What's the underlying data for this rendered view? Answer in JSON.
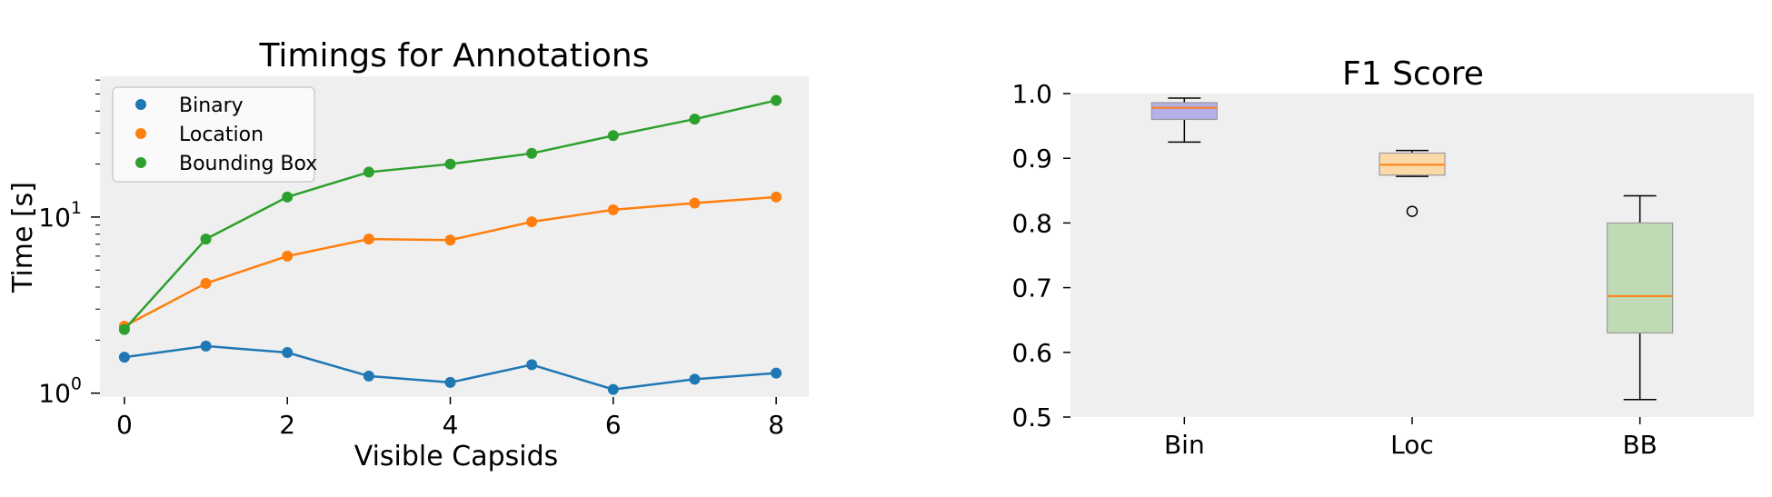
{
  "chart_data": [
    {
      "type": "line",
      "title": "Timings for Annotations",
      "xlabel": "Visible Capsids",
      "ylabel": "Time [s]",
      "yscale": "log",
      "xlim": [
        -0.3,
        8.4
      ],
      "ylim": [
        0.95,
        63
      ],
      "xticks": [
        0,
        2,
        4,
        6,
        8
      ],
      "yticks": [
        {
          "base": "10",
          "exp": "0",
          "value": 1
        },
        {
          "base": "10",
          "exp": "1",
          "value": 10
        }
      ],
      "grid": false,
      "legend_position": "top-left",
      "x": [
        0,
        1,
        2,
        3,
        4,
        5,
        6,
        7,
        8
      ],
      "series": [
        {
          "name": "Binary",
          "color": "#1f77b4",
          "values": [
            1.6,
            1.85,
            1.7,
            1.25,
            1.15,
            1.45,
            1.05,
            1.2,
            1.3
          ]
        },
        {
          "name": "Location",
          "color": "#ff7f0e",
          "values": [
            2.4,
            4.2,
            6.0,
            7.5,
            7.4,
            9.4,
            11.0,
            12.0,
            13.0
          ]
        },
        {
          "name": "Bounding Box",
          "color": "#2ca02c",
          "values": [
            2.3,
            7.5,
            13.0,
            18.0,
            20.0,
            23.0,
            29.0,
            36.0,
            46.0
          ]
        }
      ]
    },
    {
      "type": "box",
      "title": "F1 Score",
      "xlabel": "",
      "ylabel": "",
      "ylim": [
        0.5,
        1.0
      ],
      "yticks": [
        "0.5",
        "0.6",
        "0.7",
        "0.8",
        "0.9",
        "1.0"
      ],
      "grid": false,
      "categories": [
        "Bin",
        "Loc",
        "BB"
      ],
      "boxes": [
        {
          "label": "Bin",
          "color": "#b5b0e8",
          "whisker_low": 0.925,
          "q1": 0.96,
          "median": 0.978,
          "q3": 0.986,
          "whisker_high": 0.993,
          "outliers": []
        },
        {
          "label": "Loc",
          "color": "#fcd9a8",
          "whisker_low": 0.872,
          "q1": 0.874,
          "median": 0.89,
          "q3": 0.908,
          "whisker_high": 0.912,
          "outliers": [
            0.818
          ]
        },
        {
          "label": "BB",
          "color": "#bfdbb5",
          "whisker_low": 0.527,
          "q1": 0.63,
          "median": 0.687,
          "q3": 0.8,
          "whisker_high": 0.842,
          "outliers": []
        }
      ],
      "median_color": "#ff7f0e"
    }
  ]
}
